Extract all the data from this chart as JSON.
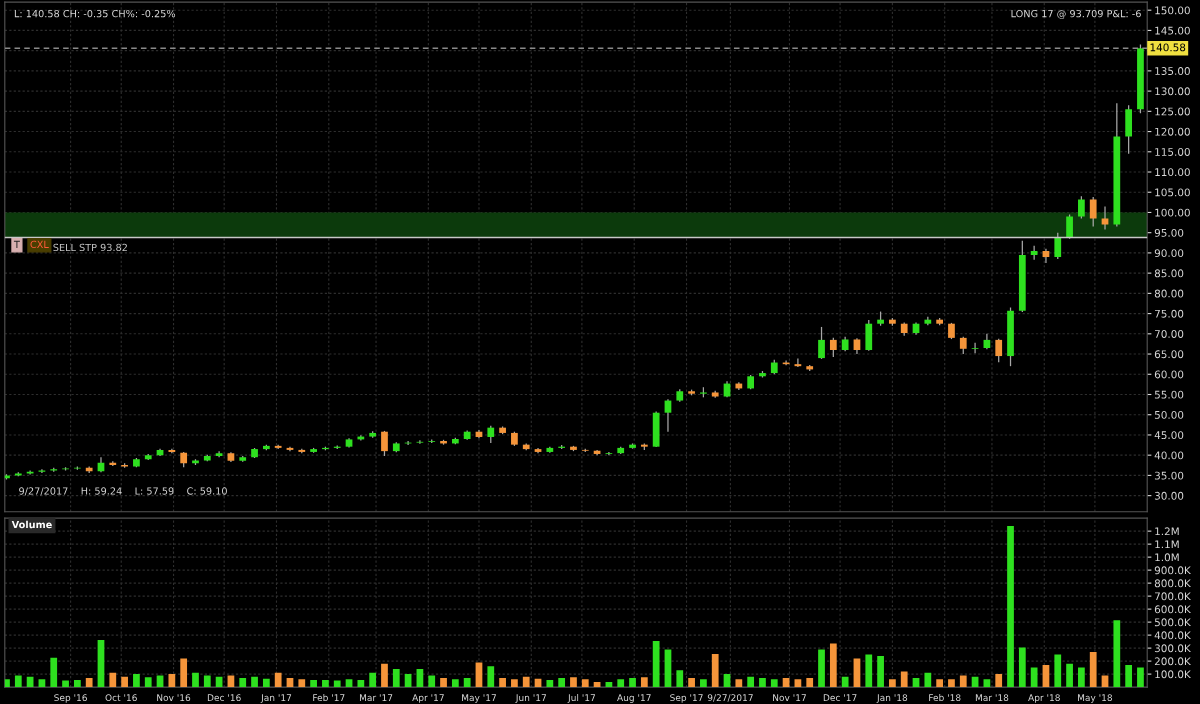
{
  "chart_data": [
    {
      "type": "candlestick",
      "colors": [
        "#2ee01f",
        "#2ee01f",
        "#2ee01f",
        "#2ee01f",
        "#2ee01f",
        "#2ee01f",
        "#2ee01f",
        "#f5953a",
        "#2ee01f",
        "#f5953a",
        "#f5953a",
        "#2ee01f",
        "#2ee01f",
        "#2ee01f",
        "#f5953a",
        "#f5953a",
        "#2ee01f",
        "#2ee01f",
        "#2ee01f",
        "#f5953a",
        "#2ee01f",
        "#2ee01f",
        "#2ee01f",
        "#f5953a",
        "#f5953a",
        "#f5953a",
        "#2ee01f",
        "#2ee01f",
        "#2ee01f",
        "#2ee01f",
        "#2ee01f",
        "#2ee01f",
        "#f5953a",
        "#2ee01f",
        "#2ee01f",
        "#2ee01f",
        "#2ee01f",
        "#f5953a",
        "#2ee01f",
        "#2ee01f",
        "#f5953a",
        "#2ee01f",
        "#f5953a",
        "#f5953a",
        "#f5953a",
        "#f5953a",
        "#2ee01f",
        "#2ee01f",
        "#f5953a",
        "#f5953a",
        "#f5953a",
        "#2ee01f",
        "#2ee01f",
        "#2ee01f",
        "#f5953a",
        "#2ee01f",
        "#2ee01f",
        "#2ee01f",
        "#f5953a",
        "#2ee01f",
        "#f5953a",
        "#2ee01f",
        "#f5953a",
        "#2ee01f",
        "#2ee01f",
        "#2ee01f",
        "#f5953a",
        "#f5953a",
        "#f5953a",
        "#2ee01f",
        "#f5953a",
        "#2ee01f",
        "#f5953a",
        "#2ee01f",
        "#2ee01f",
        "#f5953a",
        "#f5953a",
        "#2ee01f",
        "#2ee01f",
        "#f5953a",
        "#f5953a",
        "#f5953a",
        "#2ee01f",
        "#2ee01f",
        "#f5953a",
        "#2ee01f",
        "#2ee01f",
        "#2ee01f",
        "#f5953a",
        "#2ee01f",
        "#2ee01f",
        "#2ee01f",
        "#f5953a",
        "#f5953a",
        "#2ee01f",
        "#2ee01f",
        "#2ee01f"
      ],
      "x": [
        "2016-07-25",
        "2016-08-01",
        "2016-08-08",
        "2016-08-15",
        "2016-08-22",
        "2016-08-29",
        "2016-09-05",
        "2016-09-12",
        "2016-09-19",
        "2016-09-26",
        "2016-10-03",
        "2016-10-10",
        "2016-10-17",
        "2016-10-24",
        "2016-10-31",
        "2016-11-07",
        "2016-11-14",
        "2016-11-21",
        "2016-11-28",
        "2016-12-05",
        "2016-12-12",
        "2016-12-19",
        "2016-12-26",
        "2017-01-02",
        "2017-01-09",
        "2017-01-16",
        "2017-01-23",
        "2017-01-30",
        "2017-02-06",
        "2017-02-13",
        "2017-02-20",
        "2017-02-27",
        "2017-03-06",
        "2017-03-13",
        "2017-03-20",
        "2017-03-27",
        "2017-04-03",
        "2017-04-10",
        "2017-04-17",
        "2017-04-24",
        "2017-05-01",
        "2017-05-08",
        "2017-05-15",
        "2017-05-22",
        "2017-05-29",
        "2017-06-05",
        "2017-06-12",
        "2017-06-19",
        "2017-06-26",
        "2017-07-03",
        "2017-07-10",
        "2017-07-17",
        "2017-07-24",
        "2017-07-31",
        "2017-08-07",
        "2017-08-14",
        "2017-08-21",
        "2017-08-28",
        "2017-09-04",
        "2017-09-11",
        "2017-09-18",
        "2017-09-25",
        "2017-10-02",
        "2017-10-09",
        "2017-10-16",
        "2017-10-23",
        "2017-10-30",
        "2017-11-06",
        "2017-11-13",
        "2017-11-20",
        "2017-11-27",
        "2017-12-04",
        "2017-12-11",
        "2017-12-18",
        "2017-12-25",
        "2018-01-01",
        "2018-01-08",
        "2018-01-15",
        "2018-01-22",
        "2018-01-29",
        "2018-02-05",
        "2018-02-12",
        "2018-02-19",
        "2018-02-26",
        "2018-03-05",
        "2018-03-12",
        "2018-03-19",
        "2018-03-26",
        "2018-04-02",
        "2018-04-09",
        "2018-04-16",
        "2018-04-23",
        "2018-04-30",
        "2018-05-07",
        "2018-05-14",
        "2018-05-21",
        "2018-05-28"
      ],
      "ohlc": [
        [
          34.3,
          35.3,
          34.0,
          35.0
        ],
        [
          35.0,
          35.8,
          34.8,
          35.5
        ],
        [
          35.5,
          36.2,
          35.2,
          35.9
        ],
        [
          35.9,
          36.5,
          35.6,
          36.2
        ],
        [
          36.2,
          36.9,
          35.9,
          36.5
        ],
        [
          36.5,
          37.0,
          36.2,
          36.7
        ],
        [
          36.7,
          37.2,
          36.4,
          36.9
        ],
        [
          36.9,
          37.2,
          35.6,
          36.0
        ],
        [
          36.0,
          39.5,
          35.8,
          38.1
        ],
        [
          38.1,
          38.5,
          37.3,
          37.6
        ],
        [
          37.6,
          38.0,
          36.9,
          37.2
        ],
        [
          37.2,
          39.3,
          37.0,
          39.0
        ],
        [
          39.0,
          40.3,
          38.8,
          40.0
        ],
        [
          40.0,
          41.6,
          39.8,
          41.3
        ],
        [
          41.3,
          41.6,
          40.5,
          40.8
        ],
        [
          40.6,
          40.8,
          37.0,
          38.0
        ],
        [
          38.0,
          39.0,
          37.6,
          38.7
        ],
        [
          38.7,
          40.1,
          38.5,
          39.8
        ],
        [
          39.8,
          41.0,
          39.5,
          40.5
        ],
        [
          40.5,
          40.7,
          38.3,
          38.6
        ],
        [
          38.6,
          39.8,
          38.4,
          39.5
        ],
        [
          39.5,
          41.8,
          39.3,
          41.5
        ],
        [
          41.5,
          42.6,
          41.2,
          42.3
        ],
        [
          42.3,
          42.6,
          41.5,
          41.8
        ],
        [
          41.8,
          42.1,
          41.0,
          41.3
        ],
        [
          41.3,
          41.6,
          40.5,
          40.8
        ],
        [
          40.8,
          41.8,
          40.6,
          41.5
        ],
        [
          41.5,
          42.1,
          41.2,
          41.8
        ],
        [
          41.8,
          42.4,
          41.5,
          42.1
        ],
        [
          42.1,
          44.2,
          41.9,
          43.9
        ],
        [
          43.9,
          44.9,
          43.6,
          44.6
        ],
        [
          44.6,
          45.9,
          44.3,
          45.5
        ],
        [
          45.8,
          46.0,
          39.8,
          41.0
        ],
        [
          41.0,
          43.2,
          40.7,
          42.9
        ],
        [
          42.9,
          43.5,
          42.5,
          43.1
        ],
        [
          43.1,
          43.7,
          42.8,
          43.3
        ],
        [
          43.3,
          43.9,
          43.0,
          43.5
        ],
        [
          43.5,
          43.8,
          42.6,
          42.9
        ],
        [
          42.9,
          44.3,
          42.7,
          44.0
        ],
        [
          44.0,
          46.1,
          43.8,
          45.8
        ],
        [
          45.8,
          46.2,
          44.2,
          44.5
        ],
        [
          44.5,
          47.3,
          43.0,
          46.8
        ],
        [
          46.8,
          47.1,
          45.2,
          45.5
        ],
        [
          45.5,
          45.8,
          42.3,
          42.6
        ],
        [
          42.6,
          42.9,
          41.2,
          41.5
        ],
        [
          41.5,
          41.8,
          40.5,
          40.8
        ],
        [
          40.8,
          42.1,
          40.6,
          41.8
        ],
        [
          41.8,
          42.5,
          41.5,
          42.1
        ],
        [
          42.1,
          42.3,
          41.0,
          41.3
        ],
        [
          41.3,
          41.6,
          40.8,
          41.1
        ],
        [
          41.1,
          41.3,
          40.0,
          40.3
        ],
        [
          40.3,
          40.8,
          40.0,
          40.5
        ],
        [
          40.5,
          42.1,
          40.3,
          41.8
        ],
        [
          41.8,
          42.9,
          41.6,
          42.6
        ],
        [
          42.6,
          42.9,
          41.3,
          42.1
        ],
        [
          42.1,
          50.8,
          42.0,
          50.5
        ],
        [
          50.5,
          53.8,
          45.8,
          53.5
        ],
        [
          53.5,
          56.3,
          53.2,
          55.8
        ],
        [
          55.8,
          56.2,
          54.8,
          55.2
        ],
        [
          55.2,
          56.8,
          54.3,
          55.5
        ],
        [
          55.5,
          55.9,
          54.2,
          54.5
        ],
        [
          54.5,
          58.3,
          54.3,
          57.7
        ],
        [
          57.7,
          58.0,
          56.1,
          56.5
        ],
        [
          56.5,
          59.8,
          56.3,
          59.5
        ],
        [
          59.5,
          60.8,
          59.2,
          60.3
        ],
        [
          60.3,
          63.6,
          60.0,
          62.9
        ],
        [
          62.9,
          63.4,
          62.2,
          62.5
        ],
        [
          62.5,
          63.9,
          61.8,
          62.0
        ],
        [
          62.0,
          62.3,
          60.8,
          61.2
        ],
        [
          64.0,
          71.7,
          63.8,
          68.5
        ],
        [
          68.5,
          69.0,
          64.3,
          66.0
        ],
        [
          66.0,
          69.3,
          65.7,
          68.6
        ],
        [
          68.6,
          68.9,
          65.0,
          66.0
        ],
        [
          66.0,
          73.4,
          65.8,
          72.5
        ],
        [
          72.5,
          75.5,
          72.0,
          73.5
        ],
        [
          73.5,
          73.9,
          72.0,
          72.5
        ],
        [
          72.5,
          72.8,
          69.5,
          70.2
        ],
        [
          70.2,
          72.8,
          69.8,
          72.5
        ],
        [
          72.5,
          74.2,
          72.1,
          73.5
        ],
        [
          73.5,
          73.9,
          72.1,
          72.5
        ],
        [
          72.5,
          72.7,
          68.7,
          69.0
        ],
        [
          69.0,
          69.3,
          65.0,
          66.3
        ],
        [
          66.3,
          67.8,
          65.2,
          66.5
        ],
        [
          66.5,
          70.0,
          66.2,
          68.5
        ],
        [
          68.5,
          68.8,
          63.0,
          64.5
        ],
        [
          64.5,
          76.5,
          62.0,
          75.7
        ],
        [
          75.7,
          93.0,
          75.4,
          89.5
        ],
        [
          89.5,
          91.8,
          88.3,
          90.5
        ],
        [
          90.5,
          91.0,
          87.5,
          89.0
        ],
        [
          89.0,
          95.0,
          88.5,
          93.8
        ],
        [
          93.8,
          99.5,
          93.5,
          99.0
        ],
        [
          99.0,
          104.0,
          98.5,
          103.2
        ],
        [
          103.2,
          103.8,
          96.5,
          98.5
        ],
        [
          98.5,
          101.5,
          95.8,
          97.0
        ],
        [
          97.0,
          127.0,
          96.5,
          118.8
        ],
        [
          118.8,
          126.5,
          114.5,
          125.5
        ],
        [
          125.5,
          141.5,
          124.5,
          140.58
        ]
      ],
      "xlim": [
        "2016-07-24",
        "2018-06-01"
      ],
      "xticks": [
        {
          "value": "2016-09-01",
          "label": null
        },
        {
          "value": "2016-10-01",
          "label": null
        },
        {
          "value": "2016-11-01",
          "label": null
        },
        {
          "value": "2016-12-01",
          "label": null
        },
        {
          "value": "2017-01-01",
          "label": null
        },
        {
          "value": "2017-02-01",
          "label": null
        },
        {
          "value": "2017-03-01",
          "label": null
        },
        {
          "value": "2017-04-01",
          "label": null
        },
        {
          "value": "2017-05-01",
          "label": null
        },
        {
          "value": "2017-06-01",
          "label": null
        },
        {
          "value": "2017-07-01",
          "label": null
        },
        {
          "value": "2017-08-01",
          "label": null
        },
        {
          "value": "2017-09-01",
          "label": null
        },
        {
          "value": "2017-09-27",
          "label": null
        },
        {
          "value": "2017-11-01",
          "label": null
        },
        {
          "value": "2017-12-01",
          "label": null
        },
        {
          "value": "2018-01-01",
          "label": null
        },
        {
          "value": "2018-02-01",
          "label": null
        },
        {
          "value": "2018-03-01",
          "label": null
        },
        {
          "value": "2018-04-01",
          "label": null
        },
        {
          "value": "2018-05-01",
          "label": null
        }
      ],
      "ylim": [
        26,
        152
      ],
      "yticks": [
        {
          "value": 30,
          "label": "30.00"
        },
        {
          "value": 35,
          "label": "35.00"
        },
        {
          "value": 40,
          "label": "40.00"
        },
        {
          "value": 45,
          "label": "45.00"
        },
        {
          "value": 50,
          "label": "50.00"
        },
        {
          "value": 55,
          "label": "55.00"
        },
        {
          "value": 60,
          "label": "60.00"
        },
        {
          "value": 65,
          "label": "65.00"
        },
        {
          "value": 70,
          "label": "70.00"
        },
        {
          "value": 75,
          "label": "75.00"
        },
        {
          "value": 80,
          "label": "80.00"
        },
        {
          "value": 85,
          "label": "85.00"
        },
        {
          "value": 90,
          "label": "90.00"
        },
        {
          "value": 95,
          "label": "95.00"
        },
        {
          "value": 100,
          "label": "100.00"
        },
        {
          "value": 105,
          "label": "105.00"
        },
        {
          "value": 110,
          "label": "110.00"
        },
        {
          "value": 115,
          "label": "115.00"
        },
        {
          "value": 120,
          "label": "120.00"
        },
        {
          "value": 125,
          "label": "125.00"
        },
        {
          "value": 130,
          "label": "130.00"
        },
        {
          "value": 135,
          "label": "135.00"
        },
        {
          "value": 140,
          "label": null
        },
        {
          "value": 145,
          "label": "145.00"
        },
        {
          "value": 150,
          "label": "150.00"
        }
      ],
      "tick_labels": "y",
      "grid": true,
      "bands": [
        {
          "axis": "y",
          "from": 93.82,
          "to": 100,
          "color": "#0c3a0c"
        }
      ],
      "ref_lines": [
        {
          "axis": "y",
          "value": 93.82,
          "label": "SELL STP 93.82",
          "color": "#c8c8c8",
          "line_style": "solid"
        },
        {
          "axis": "y",
          "value": 140.58,
          "label": "140.58",
          "color": "#8a8a8a",
          "line_style": "dashed"
        }
      ],
      "annotations": [
        "L: 140.58 CH: -0.35 CH%: -0.25%",
        "LONG 17 @ 93.709 P&L: -6",
        "T",
        "CXL",
        "9/27/2017    H: 59.24    L: 57.59    C: 59.10"
      ]
    },
    {
      "type": "bar",
      "title": "Volume",
      "x": [
        "2016-07-25",
        "2016-08-01",
        "2016-08-08",
        "2016-08-15",
        "2016-08-22",
        "2016-08-29",
        "2016-09-05",
        "2016-09-12",
        "2016-09-19",
        "2016-09-26",
        "2016-10-03",
        "2016-10-10",
        "2016-10-17",
        "2016-10-24",
        "2016-10-31",
        "2016-11-07",
        "2016-11-14",
        "2016-11-21",
        "2016-11-28",
        "2016-12-05",
        "2016-12-12",
        "2016-12-19",
        "2016-12-26",
        "2017-01-02",
        "2017-01-09",
        "2017-01-16",
        "2017-01-23",
        "2017-01-30",
        "2017-02-06",
        "2017-02-13",
        "2017-02-20",
        "2017-02-27",
        "2017-03-06",
        "2017-03-13",
        "2017-03-20",
        "2017-03-27",
        "2017-04-03",
        "2017-04-10",
        "2017-04-17",
        "2017-04-24",
        "2017-05-01",
        "2017-05-08",
        "2017-05-15",
        "2017-05-22",
        "2017-05-29",
        "2017-06-05",
        "2017-06-12",
        "2017-06-19",
        "2017-06-26",
        "2017-07-03",
        "2017-07-10",
        "2017-07-17",
        "2017-07-24",
        "2017-07-31",
        "2017-08-07",
        "2017-08-14",
        "2017-08-21",
        "2017-08-28",
        "2017-09-04",
        "2017-09-11",
        "2017-09-18",
        "2017-09-25",
        "2017-10-02",
        "2017-10-09",
        "2017-10-16",
        "2017-10-23",
        "2017-10-30",
        "2017-11-06",
        "2017-11-13",
        "2017-11-20",
        "2017-11-27",
        "2017-12-04",
        "2017-12-11",
        "2017-12-18",
        "2017-12-25",
        "2018-01-01",
        "2018-01-08",
        "2018-01-15",
        "2018-01-22",
        "2018-01-29",
        "2018-02-05",
        "2018-02-12",
        "2018-02-19",
        "2018-02-26",
        "2018-03-05",
        "2018-03-12",
        "2018-03-19",
        "2018-03-26",
        "2018-04-02",
        "2018-04-09",
        "2018-04-16",
        "2018-04-23",
        "2018-04-30",
        "2018-05-07",
        "2018-05-14",
        "2018-05-21",
        "2018-05-28"
      ],
      "values": [
        60000,
        90000,
        80000,
        60000,
        226000,
        50000,
        55000,
        70000,
        362000,
        110000,
        80000,
        100000,
        75000,
        90000,
        100000,
        220000,
        110000,
        90000,
        80000,
        90000,
        70000,
        80000,
        65000,
        110000,
        70000,
        60000,
        55000,
        55000,
        50000,
        60000,
        55000,
        110000,
        180000,
        140000,
        100000,
        140000,
        90000,
        70000,
        60000,
        70000,
        190000,
        160000,
        70000,
        60000,
        80000,
        65000,
        55000,
        70000,
        75000,
        60000,
        40000,
        40000,
        60000,
        70000,
        75000,
        355000,
        290000,
        130000,
        70000,
        60000,
        255000,
        100000,
        60000,
        80000,
        70000,
        60000,
        70000,
        60000,
        70000,
        290000,
        335000,
        80000,
        220000,
        250000,
        240000,
        60000,
        120000,
        70000,
        110000,
        60000,
        60000,
        90000,
        80000,
        60000,
        100000,
        1240000,
        305000,
        150000,
        170000,
        250000,
        180000,
        150000,
        270000,
        90000,
        515000,
        170000,
        150000
      ],
      "colors": [
        "#2ee01f",
        "#2ee01f",
        "#2ee01f",
        "#2ee01f",
        "#2ee01f",
        "#2ee01f",
        "#2ee01f",
        "#f5953a",
        "#2ee01f",
        "#f5953a",
        "#f5953a",
        "#2ee01f",
        "#2ee01f",
        "#2ee01f",
        "#f5953a",
        "#f5953a",
        "#2ee01f",
        "#2ee01f",
        "#2ee01f",
        "#f5953a",
        "#2ee01f",
        "#2ee01f",
        "#2ee01f",
        "#f5953a",
        "#f5953a",
        "#f5953a",
        "#2ee01f",
        "#2ee01f",
        "#2ee01f",
        "#2ee01f",
        "#2ee01f",
        "#2ee01f",
        "#f5953a",
        "#2ee01f",
        "#2ee01f",
        "#2ee01f",
        "#2ee01f",
        "#f5953a",
        "#2ee01f",
        "#2ee01f",
        "#f5953a",
        "#2ee01f",
        "#f5953a",
        "#f5953a",
        "#f5953a",
        "#f5953a",
        "#2ee01f",
        "#2ee01f",
        "#f5953a",
        "#f5953a",
        "#f5953a",
        "#2ee01f",
        "#2ee01f",
        "#2ee01f",
        "#f5953a",
        "#2ee01f",
        "#2ee01f",
        "#2ee01f",
        "#f5953a",
        "#2ee01f",
        "#f5953a",
        "#2ee01f",
        "#f5953a",
        "#2ee01f",
        "#2ee01f",
        "#2ee01f",
        "#f5953a",
        "#f5953a",
        "#f5953a",
        "#2ee01f",
        "#f5953a",
        "#2ee01f",
        "#f5953a",
        "#2ee01f",
        "#2ee01f",
        "#f5953a",
        "#f5953a",
        "#2ee01f",
        "#2ee01f",
        "#f5953a",
        "#f5953a",
        "#f5953a",
        "#2ee01f",
        "#2ee01f",
        "#f5953a",
        "#2ee01f",
        "#2ee01f",
        "#2ee01f",
        "#f5953a",
        "#2ee01f",
        "#2ee01f",
        "#2ee01f",
        "#f5953a",
        "#f5953a",
        "#2ee01f",
        "#2ee01f",
        "#2ee01f"
      ],
      "xlim": [
        "2016-07-24",
        "2018-06-01"
      ],
      "xticks": [
        {
          "value": "2016-09-01",
          "label": "Sep '16"
        },
        {
          "value": "2016-10-01",
          "label": "Oct '16"
        },
        {
          "value": "2016-11-01",
          "label": "Nov '16"
        },
        {
          "value": "2016-12-01",
          "label": "Dec '16"
        },
        {
          "value": "2017-01-01",
          "label": "Jan '17"
        },
        {
          "value": "2017-02-01",
          "label": "Feb '17"
        },
        {
          "value": "2017-03-01",
          "label": "Mar '17"
        },
        {
          "value": "2017-04-01",
          "label": "Apr '17"
        },
        {
          "value": "2017-05-01",
          "label": "May '17"
        },
        {
          "value": "2017-06-01",
          "label": "Jun '17"
        },
        {
          "value": "2017-07-01",
          "label": "Jul '17"
        },
        {
          "value": "2017-08-01",
          "label": "Aug '17"
        },
        {
          "value": "2017-09-01",
          "label": "Sep '17"
        },
        {
          "value": "2017-09-27",
          "label": "9/27/2017"
        },
        {
          "value": "2017-11-01",
          "label": "Nov '17"
        },
        {
          "value": "2017-12-01",
          "label": "Dec '17"
        },
        {
          "value": "2018-01-01",
          "label": "Jan '18"
        },
        {
          "value": "2018-02-01",
          "label": "Feb '18"
        },
        {
          "value": "2018-03-01",
          "label": "Mar '18"
        },
        {
          "value": "2018-04-01",
          "label": "Apr '18"
        },
        {
          "value": "2018-05-01",
          "label": "May '18"
        }
      ],
      "ylim": [
        0,
        1300000
      ],
      "yticks": [
        {
          "value": 100000,
          "label": "100.0K"
        },
        {
          "value": 200000,
          "label": "200.0K"
        },
        {
          "value": 300000,
          "label": "300.0K"
        },
        {
          "value": 400000,
          "label": "400.0K"
        },
        {
          "value": 500000,
          "label": "500.0K"
        },
        {
          "value": 600000,
          "label": "600.0K"
        },
        {
          "value": 700000,
          "label": "700.0K"
        },
        {
          "value": 800000,
          "label": "800.0K"
        },
        {
          "value": 900000,
          "label": "900.0K"
        },
        {
          "value": 1000000,
          "label": "1.0M"
        },
        {
          "value": 1100000,
          "label": "1.1M"
        },
        {
          "value": 1200000,
          "label": "1.2M"
        }
      ],
      "grid": true
    }
  ]
}
